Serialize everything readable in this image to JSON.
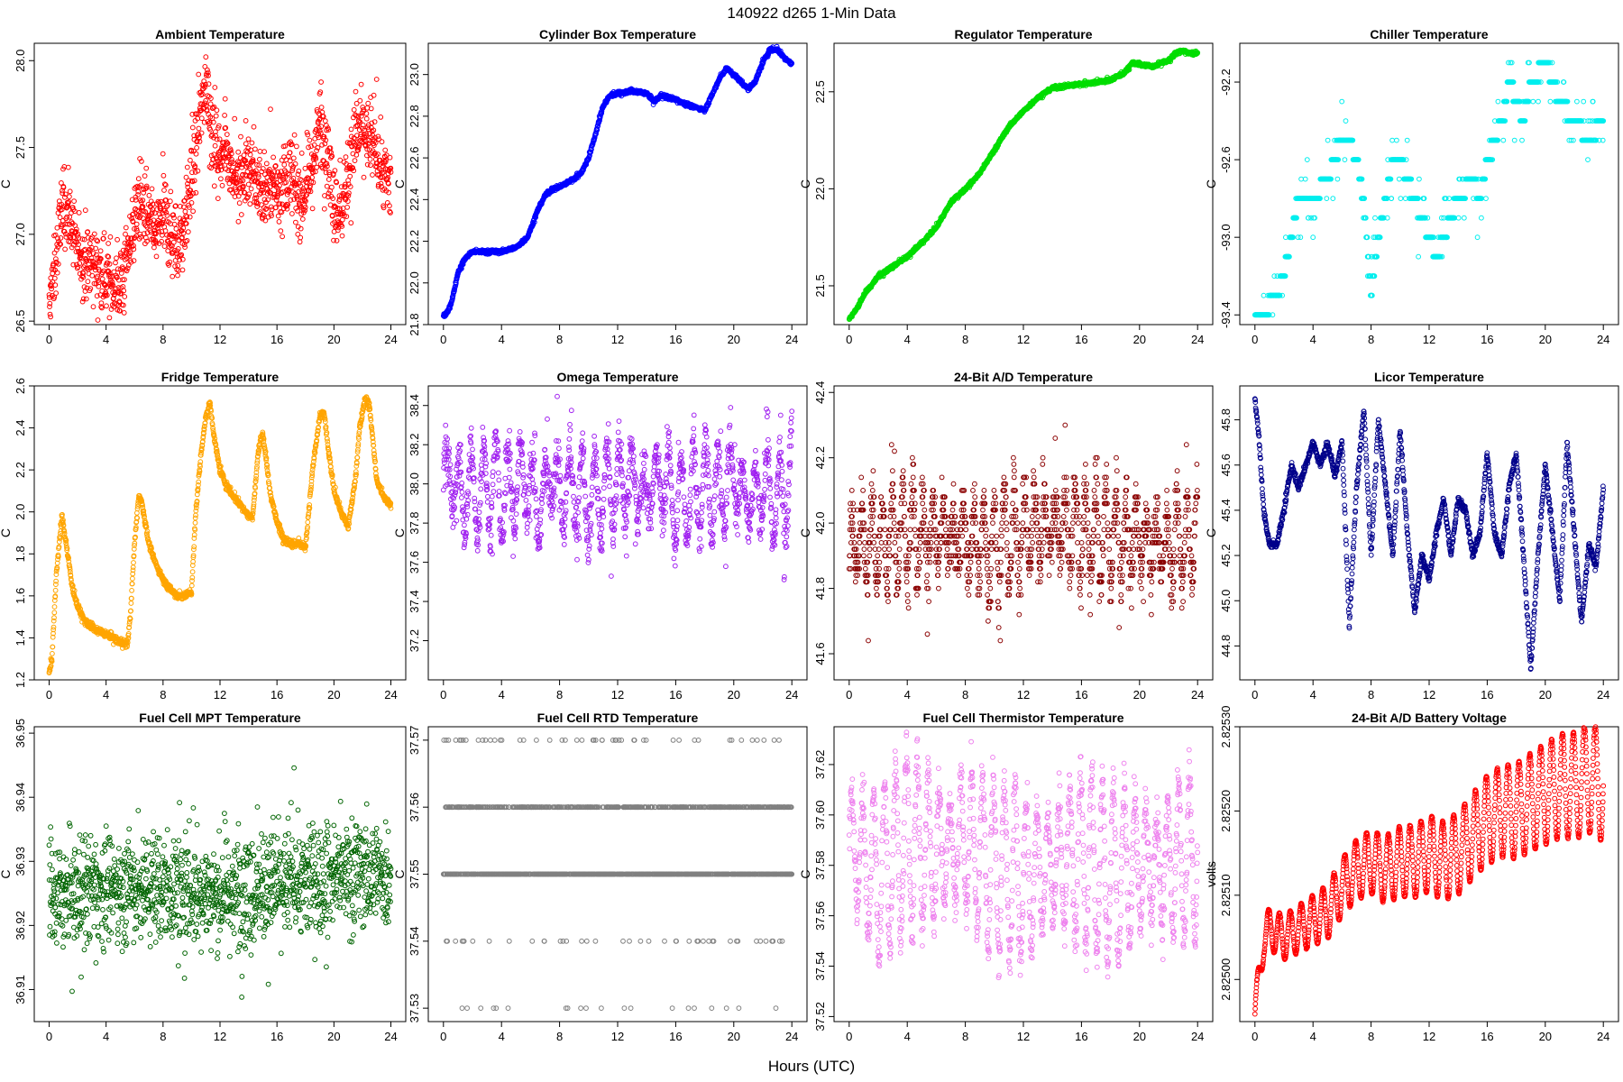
{
  "figure": {
    "title": "140922   d265   1-Min Data",
    "xlabel": "Hours (UTC)"
  },
  "chart_data": [
    {
      "type": "scatter",
      "title": "Ambient Temperature",
      "ylabel": "C",
      "color": "#ff0000",
      "xlim": [
        0,
        24
      ],
      "ylim": [
        26.48,
        28.1
      ],
      "xticks": [
        "0",
        "4",
        "8",
        "12",
        "16",
        "20",
        "24"
      ],
      "yticks": [
        "26.5",
        "27.0",
        "27.5",
        "28.0"
      ],
      "x": [
        0,
        0.3,
        0.6,
        1,
        1.5,
        2,
        2.5,
        3,
        3.5,
        4,
        4.5,
        5,
        5.5,
        6,
        6.5,
        7,
        7.5,
        8,
        8.5,
        9,
        9.5,
        10,
        10.5,
        11,
        11.5,
        12,
        12.5,
        13,
        13.5,
        14,
        14.5,
        15,
        15.5,
        16,
        16.5,
        17,
        17.5,
        18,
        18.5,
        19,
        19.5,
        20,
        20.5,
        21,
        21.5,
        22,
        22.5,
        23,
        23.5,
        24
      ],
      "y": [
        26.55,
        26.75,
        26.95,
        27.2,
        27.1,
        26.9,
        26.85,
        26.82,
        26.8,
        26.75,
        26.7,
        26.72,
        26.85,
        27.1,
        27.2,
        27.05,
        27.0,
        27.1,
        27.0,
        26.95,
        27.05,
        27.3,
        27.6,
        27.9,
        27.55,
        27.45,
        27.5,
        27.35,
        27.3,
        27.4,
        27.3,
        27.25,
        27.3,
        27.25,
        27.3,
        27.35,
        27.2,
        27.25,
        27.4,
        27.65,
        27.5,
        27.2,
        27.1,
        27.35,
        27.55,
        27.6,
        27.55,
        27.45,
        27.35,
        27.3
      ],
      "noise": 0.1,
      "spread": 0.12
    },
    {
      "type": "scatter",
      "title": "Cylinder Box Temperature",
      "ylabel": "C",
      "color": "#0000ff",
      "xlim": [
        0,
        24
      ],
      "ylim": [
        21.8,
        23.15
      ],
      "xticks": [
        "0",
        "4",
        "8",
        "12",
        "16",
        "20",
        "24"
      ],
      "yticks": [
        "21.8",
        "22.0",
        "22.2",
        "22.4",
        "22.6",
        "22.8",
        "23.0"
      ],
      "x": [
        0,
        0.3,
        0.6,
        1,
        1.5,
        2,
        3,
        4,
        5,
        5.8,
        6.5,
        7,
        7.5,
        8,
        9,
        9.5,
        10,
        10.5,
        11,
        11.5,
        12,
        13,
        14,
        14.5,
        15,
        16,
        17,
        18,
        18.5,
        19,
        19.5,
        20,
        21,
        21.5,
        22,
        22.5,
        23,
        23.5,
        24
      ],
      "y": [
        21.84,
        21.86,
        21.92,
        22.05,
        22.12,
        22.15,
        22.15,
        22.15,
        22.17,
        22.22,
        22.35,
        22.42,
        22.45,
        22.46,
        22.5,
        22.53,
        22.6,
        22.72,
        22.85,
        22.9,
        22.91,
        22.92,
        22.91,
        22.87,
        22.9,
        22.88,
        22.85,
        22.83,
        22.9,
        22.98,
        23.03,
        23.0,
        22.93,
        22.97,
        23.06,
        23.12,
        23.12,
        23.08,
        23.05
      ],
      "noise": 0.004,
      "spread": 0.006
    },
    {
      "type": "scatter",
      "title": "Regulator Temperature",
      "ylabel": "C",
      "color": "#00dd00",
      "xlim": [
        0,
        24
      ],
      "ylim": [
        21.3,
        22.75
      ],
      "xticks": [
        "0",
        "4",
        "8",
        "12",
        "16",
        "20",
        "24"
      ],
      "yticks": [
        "21.5",
        "22.0",
        "22.5"
      ],
      "x": [
        0,
        0.5,
        1,
        1.5,
        2,
        3,
        4,
        5,
        6,
        7,
        8,
        9,
        10,
        11,
        12,
        13,
        14,
        15,
        16,
        17,
        18,
        19,
        19.5,
        20,
        21,
        21.5,
        22,
        22.5,
        23,
        23.5,
        24
      ],
      "y": [
        21.33,
        21.38,
        21.45,
        21.5,
        21.55,
        21.6,
        21.65,
        21.72,
        21.8,
        21.93,
        22.0,
        22.08,
        22.2,
        22.32,
        22.4,
        22.47,
        22.52,
        22.53,
        22.54,
        22.55,
        22.56,
        22.6,
        22.65,
        22.64,
        22.63,
        22.65,
        22.66,
        22.7,
        22.71,
        22.7,
        22.7
      ],
      "noise": 0.004,
      "spread": 0.006
    },
    {
      "type": "scatter",
      "title": "Chiller Temperature",
      "ylabel": "C",
      "color": "#00eeee",
      "xlim": [
        0,
        24
      ],
      "ylim": [
        -93.45,
        -92.0
      ],
      "xticks": [
        "0",
        "4",
        "8",
        "12",
        "16",
        "20",
        "24"
      ],
      "yticks": [
        "-93.4",
        "-93.0",
        "-92.6",
        "-92.2"
      ],
      "x": [
        0,
        0.5,
        1,
        1.5,
        2,
        2.5,
        3,
        4,
        5,
        6,
        6.5,
        7,
        7.5,
        8,
        8.5,
        9,
        9.5,
        10,
        11,
        12,
        12.5,
        13,
        14,
        15,
        15.5,
        16,
        16.5,
        17,
        17.5,
        18,
        18.5,
        19,
        20,
        20.5,
        21,
        22,
        23,
        24
      ],
      "y": [
        -93.4,
        -93.4,
        -93.35,
        -93.3,
        -93.2,
        -93.0,
        -92.8,
        -92.8,
        -92.7,
        -92.5,
        -92.5,
        -92.6,
        -92.8,
        -93.3,
        -93.0,
        -92.8,
        -92.6,
        -92.6,
        -92.8,
        -93.0,
        -93.1,
        -93.0,
        -92.8,
        -92.7,
        -92.8,
        -92.6,
        -92.5,
        -92.4,
        -92.2,
        -92.3,
        -92.4,
        -92.2,
        -92.1,
        -92.2,
        -92.3,
        -92.4,
        -92.5,
        -92.4
      ],
      "noise": 0,
      "spread": 0.1,
      "quantum": 0.1
    },
    {
      "type": "scatter",
      "title": "Fridge Temperature",
      "ylabel": "C",
      "color": "#ffa500",
      "xlim": [
        0,
        24
      ],
      "ylim": [
        1.2,
        2.6
      ],
      "xticks": [
        "0",
        "4",
        "8",
        "12",
        "16",
        "20",
        "24"
      ],
      "yticks": [
        "1.2",
        "1.4",
        "1.6",
        "1.8",
        "2.0",
        "2.2",
        "2.4",
        "2.6"
      ],
      "x": [
        0,
        0.2,
        0.5,
        0.9,
        1.2,
        1.6,
        2,
        2.5,
        3,
        3.5,
        4,
        4.5,
        5,
        5.5,
        5.7,
        6,
        6.3,
        6.5,
        7,
        7.5,
        8,
        8.5,
        9,
        9.5,
        10,
        10.3,
        10.7,
        11,
        11.3,
        11.6,
        12,
        12.5,
        13,
        13.5,
        14,
        14.3,
        14.7,
        15,
        15.5,
        16,
        16.5,
        17,
        17.5,
        18,
        18.5,
        19,
        19.3,
        19.6,
        20,
        20.5,
        21,
        21.5,
        21.8,
        22.2,
        22.5,
        22.8,
        23,
        23.5,
        24
      ],
      "y": [
        1.24,
        1.3,
        1.7,
        1.98,
        1.85,
        1.65,
        1.55,
        1.48,
        1.45,
        1.43,
        1.42,
        1.4,
        1.38,
        1.37,
        1.5,
        1.85,
        2.08,
        2.05,
        1.85,
        1.75,
        1.68,
        1.63,
        1.6,
        1.6,
        1.62,
        2.0,
        2.3,
        2.45,
        2.52,
        2.35,
        2.2,
        2.12,
        2.07,
        2.03,
        1.98,
        1.98,
        2.3,
        2.38,
        2.1,
        1.95,
        1.87,
        1.85,
        1.85,
        1.83,
        2.2,
        2.45,
        2.48,
        2.3,
        2.1,
        2.0,
        1.93,
        2.15,
        2.4,
        2.55,
        2.5,
        2.3,
        2.15,
        2.07,
        2.03
      ],
      "noise": 0.008,
      "spread": 0.01
    },
    {
      "type": "scatter",
      "title": "Omega Temperature",
      "ylabel": "C",
      "color": "#a020f0",
      "xlim": [
        0,
        24
      ],
      "ylim": [
        37.0,
        38.5
      ],
      "xticks": [
        "0",
        "4",
        "8",
        "12",
        "16",
        "20",
        "24"
      ],
      "yticks": [
        "37.2",
        "37.4",
        "37.6",
        "37.8",
        "38.0",
        "38.2",
        "38.4"
      ],
      "x": [
        0,
        1,
        2,
        3,
        4,
        5,
        6,
        6.5,
        7,
        7.5,
        8,
        9,
        10,
        11,
        12,
        13,
        14,
        15,
        16,
        17,
        18,
        19,
        20,
        21,
        22,
        23,
        24
      ],
      "y": [
        38.1,
        37.95,
        37.95,
        38.0,
        37.95,
        38.0,
        38.0,
        37.85,
        38.0,
        38.05,
        37.95,
        38.0,
        37.9,
        37.95,
        38.0,
        38.0,
        37.95,
        38.05,
        37.9,
        37.95,
        38.0,
        37.95,
        38.05,
        37.9,
        38.0,
        37.9,
        38.05
      ],
      "noise": 0.05,
      "spread": 0.12,
      "osc": {
        "amp": 0.2,
        "period": 0.85
      }
    },
    {
      "type": "scatter",
      "title": "24-Bit A/D Temperature",
      "ylabel": "C",
      "color": "#8b0000",
      "xlim": [
        0,
        24
      ],
      "ylim": [
        41.52,
        42.42
      ],
      "xticks": [
        "0",
        "4",
        "8",
        "12",
        "16",
        "20",
        "24"
      ],
      "yticks": [
        "41.6",
        "41.8",
        "42.0",
        "42.2",
        "42.4"
      ],
      "x": [
        0,
        2,
        4,
        6,
        8,
        10,
        12,
        14,
        16,
        18,
        20,
        22,
        24
      ],
      "y": [
        41.95,
        41.93,
        41.97,
        41.97,
        41.95,
        41.93,
        41.97,
        42.0,
        41.97,
        41.95,
        41.95,
        41.93,
        41.97
      ],
      "noise": 0.04,
      "spread": 0.08,
      "quantum": 0.02,
      "osc": {
        "amp": 0.12,
        "period": 0.7
      }
    },
    {
      "type": "scatter",
      "title": "Licor Temperature",
      "ylabel": "C",
      "color": "#00008b",
      "xlim": [
        0,
        24
      ],
      "ylim": [
        44.65,
        45.95
      ],
      "xticks": [
        "0",
        "4",
        "8",
        "12",
        "16",
        "20",
        "24"
      ],
      "yticks": [
        "44.8",
        "45.0",
        "45.2",
        "45.4",
        "45.6",
        "45.8"
      ],
      "x": [
        0,
        0.3,
        0.6,
        1,
        1.5,
        2,
        2.5,
        3,
        3.5,
        4,
        4.5,
        5,
        5.5,
        6,
        6.5,
        7,
        7.5,
        8,
        8.5,
        9,
        9.5,
        10,
        10.5,
        11,
        11.5,
        12,
        12.5,
        13,
        13.5,
        14,
        14.5,
        15,
        15.5,
        16,
        16.5,
        17,
        17.5,
        18,
        18.5,
        19,
        19.5,
        20,
        20.5,
        21,
        21.5,
        22,
        22.5,
        23,
        23.5,
        24
      ],
      "y": [
        45.9,
        45.7,
        45.4,
        45.25,
        45.25,
        45.4,
        45.6,
        45.5,
        45.6,
        45.7,
        45.6,
        45.7,
        45.55,
        45.7,
        44.9,
        45.5,
        45.85,
        45.2,
        45.8,
        45.5,
        45.2,
        45.75,
        45.3,
        44.95,
        45.2,
        45.1,
        45.3,
        45.45,
        45.2,
        45.45,
        45.4,
        45.2,
        45.3,
        45.65,
        45.3,
        45.2,
        45.5,
        45.65,
        45.2,
        44.7,
        45.2,
        45.6,
        45.3,
        45.0,
        45.7,
        45.3,
        44.9,
        45.25,
        45.15,
        45.5
      ],
      "noise": 0.008,
      "spread": 0.01
    },
    {
      "type": "scatter",
      "title": "Fuel Cell MPT Temperature",
      "ylabel": "C",
      "color": "#006400",
      "xlim": [
        0,
        24
      ],
      "ylim": [
        36.905,
        36.951
      ],
      "xticks": [
        "0",
        "4",
        "8",
        "12",
        "16",
        "20",
        "24"
      ],
      "yticks": [
        "36.91",
        "36.92",
        "36.93",
        "36.94",
        "36.95"
      ],
      "x": [
        0,
        4,
        8,
        12,
        16,
        20,
        24
      ],
      "y": [
        36.924,
        36.926,
        36.926,
        36.925,
        36.926,
        36.928,
        36.928
      ],
      "noise": 0.004,
      "spread": 0.005
    },
    {
      "type": "scatter",
      "title": "Fuel Cell RTD Temperature",
      "ylabel": "C",
      "color": "#808080",
      "xlim": [
        0,
        24
      ],
      "ylim": [
        37.528,
        37.572
      ],
      "xticks": [
        "0",
        "4",
        "8",
        "12",
        "16",
        "20",
        "24"
      ],
      "yticks": [
        "37.53",
        "37.54",
        "37.55",
        "37.56",
        "37.57"
      ],
      "x": [
        0,
        24
      ],
      "y": [
        37.555,
        37.555
      ],
      "noise": 0,
      "spread": 0,
      "levels": [
        37.53,
        37.54,
        37.55,
        37.56,
        37.57
      ],
      "weights": [
        0.02,
        0.08,
        0.45,
        0.37,
        0.08
      ]
    },
    {
      "type": "scatter",
      "title": "Fuel Cell Thermistor Temperature",
      "ylabel": "C",
      "color": "#ee82ee",
      "xlim": [
        0,
        24
      ],
      "ylim": [
        37.518,
        37.635
      ],
      "xticks": [
        "0",
        "4",
        "8",
        "12",
        "16",
        "20",
        "24"
      ],
      "yticks": [
        "37.52",
        "37.54",
        "37.56",
        "37.58",
        "37.60",
        "37.62"
      ],
      "x": [
        0,
        2,
        4,
        6,
        8,
        10,
        12,
        14,
        16,
        18,
        20,
        22,
        24
      ],
      "y": [
        37.59,
        37.575,
        37.59,
        37.585,
        37.59,
        37.58,
        37.575,
        37.58,
        37.585,
        37.575,
        37.58,
        37.58,
        37.585
      ],
      "noise": 0.004,
      "spread": 0.006,
      "osc": {
        "amp": 0.03,
        "period": 0.75
      }
    },
    {
      "type": "scatter",
      "title": "24-Bit A/D Battery Voltage",
      "ylabel": "volts",
      "color": "#ff0000",
      "xlim": [
        0,
        24
      ],
      "ylim": [
        2.82495,
        2.8253
      ],
      "xticks": [
        "0",
        "4",
        "8",
        "12",
        "16",
        "20",
        "24"
      ],
      "yticks": [
        "2.82500",
        "2.82510",
        "2.82520",
        "2.82530"
      ],
      "x": [
        0,
        0.3,
        0.6,
        1,
        2,
        3,
        4,
        5,
        6,
        7,
        8,
        9,
        10,
        11,
        12,
        13,
        14,
        15,
        16,
        17,
        18,
        19,
        20,
        21,
        22,
        23,
        24
      ],
      "y": [
        2.82496,
        2.825,
        2.82505,
        2.82506,
        2.82505,
        2.82506,
        2.82507,
        2.82508,
        2.82511,
        2.82513,
        2.82514,
        2.82513,
        2.82514,
        2.82514,
        2.82515,
        2.82514,
        2.82515,
        2.82517,
        2.82519,
        2.8252,
        2.8252,
        2.82521,
        2.82522,
        2.82523,
        2.82523,
        2.82524,
        2.82523
      ],
      "noise": 6e-07,
      "spread": 8e-07,
      "osc": {
        "amp": 4.5e-05,
        "period": 0.75,
        "growth": 1
      }
    }
  ]
}
